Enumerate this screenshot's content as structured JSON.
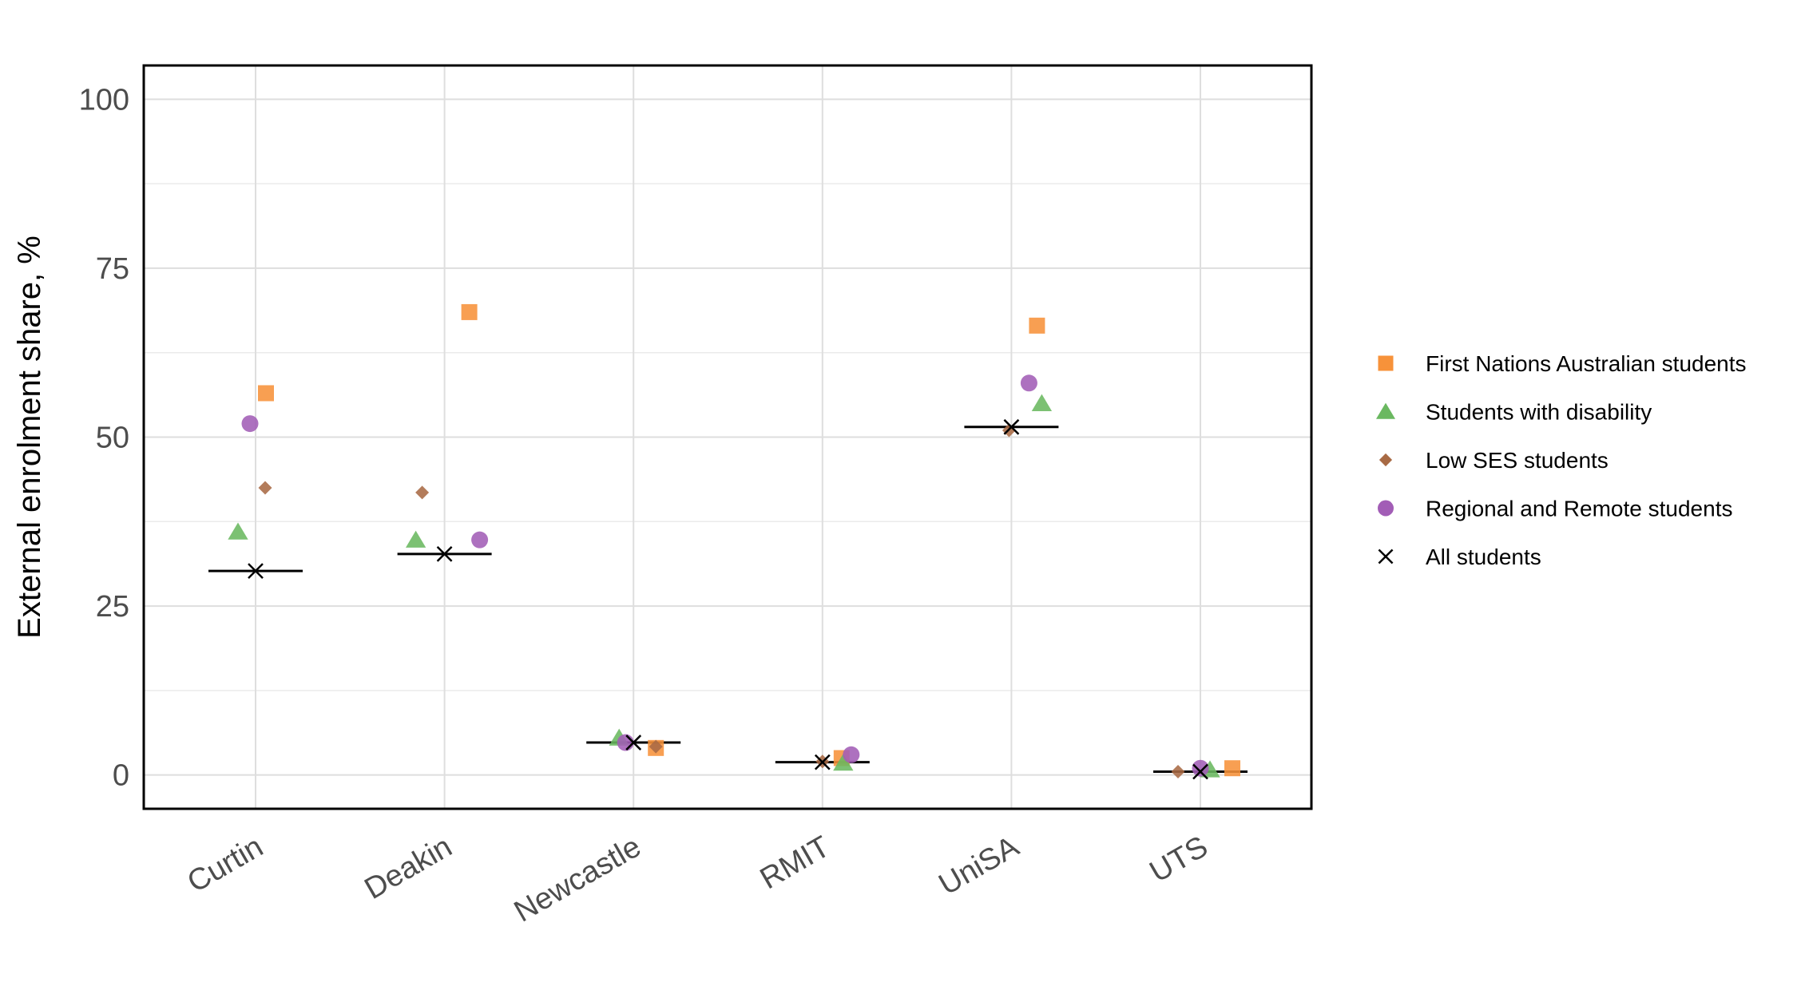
{
  "chart_data": {
    "type": "scatter",
    "title": "",
    "xlabel": "",
    "ylabel": "External enrolment share, %",
    "ylim": [
      -5,
      105
    ],
    "yticks": [
      0,
      25,
      50,
      75,
      100
    ],
    "categories": [
      "Curtin",
      "Deakin",
      "Newcastle",
      "RMIT",
      "UniSA",
      "UTS"
    ],
    "grid": true,
    "legend_position": "right",
    "series": [
      {
        "name": "First Nations Australian students",
        "marker": "square",
        "color": "#F7923A",
        "values": [
          56.5,
          68.5,
          4.0,
          2.5,
          66.5,
          1.0
        ]
      },
      {
        "name": "Students with disability",
        "marker": "triangle",
        "color": "#6AB860",
        "values": [
          36.0,
          34.8,
          5.5,
          1.8,
          55.0,
          0.8
        ]
      },
      {
        "name": "Low SES students",
        "marker": "diamond",
        "color": "#A86A44",
        "values": [
          42.5,
          41.8,
          4.2,
          2.0,
          51.0,
          0.5
        ]
      },
      {
        "name": "Regional and Remote students",
        "marker": "circle",
        "color": "#A25DB6",
        "values": [
          52.0,
          34.8,
          4.8,
          3.0,
          58.0,
          1.0
        ]
      },
      {
        "name": "All students",
        "marker": "x",
        "color": "#000000",
        "values": [
          30.2,
          32.7,
          4.8,
          1.9,
          51.5,
          0.5
        ]
      }
    ]
  }
}
